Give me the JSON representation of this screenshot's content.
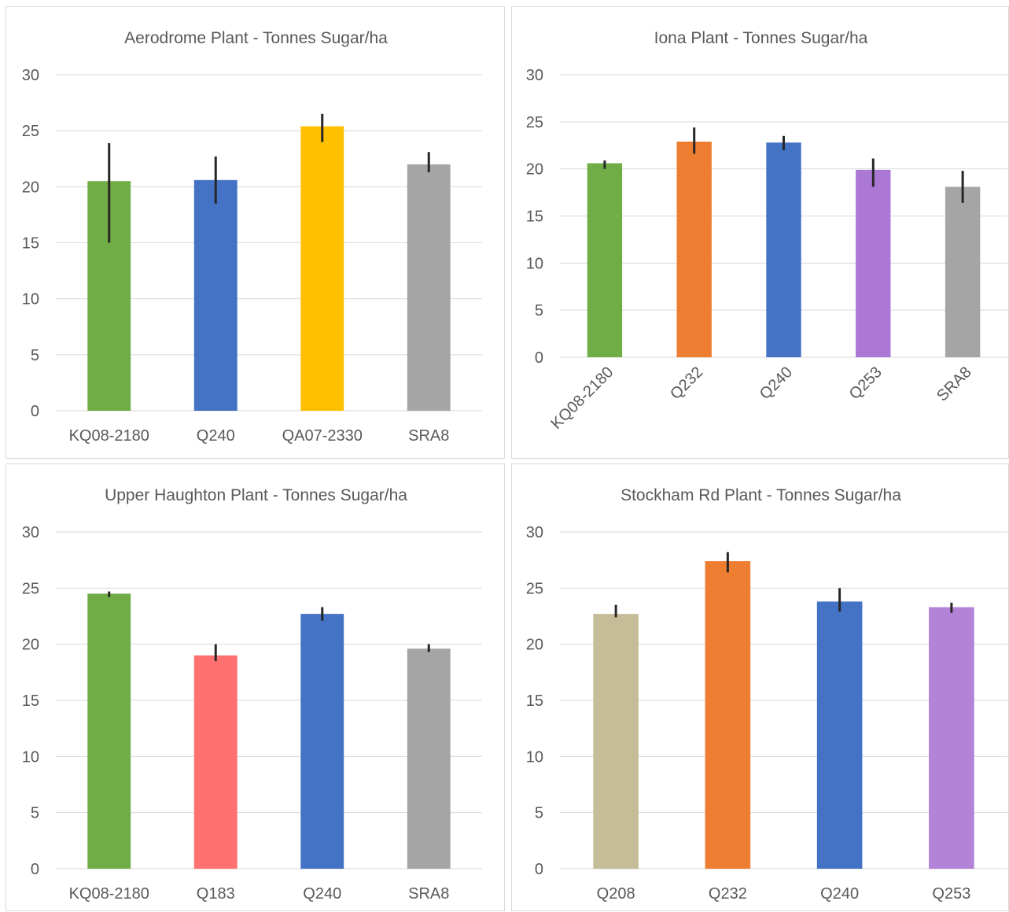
{
  "chart_data": [
    {
      "type": "bar",
      "title": "Aerodrome Plant - Tonnes Sugar/ha",
      "categories": [
        "KQ08-2180",
        "Q240",
        "QA07-2330",
        "SRA8"
      ],
      "values": [
        20.5,
        20.6,
        25.4,
        22.0
      ],
      "error_low": [
        15.0,
        18.5,
        24.0,
        21.3
      ],
      "error_high": [
        23.9,
        22.7,
        26.5,
        23.1
      ],
      "colors": [
        "#70AD47",
        "#4472C4",
        "#FFC000",
        "#A5A5A5"
      ],
      "ylim": [
        0,
        30
      ],
      "yticks": [
        0,
        5,
        10,
        15,
        20,
        25,
        30
      ],
      "grid": true,
      "legend": "none",
      "xlabel": "",
      "ylabel": ""
    },
    {
      "type": "bar",
      "title": "Iona Plant - Tonnes Sugar/ha",
      "categories": [
        "KQ08-2180",
        "Q232",
        "Q240",
        "Q253",
        "SRA8"
      ],
      "values": [
        20.6,
        22.9,
        22.8,
        19.9,
        18.1
      ],
      "error_low": [
        20.0,
        21.6,
        22.0,
        18.1,
        16.4
      ],
      "error_high": [
        20.9,
        24.4,
        23.5,
        21.1,
        19.8
      ],
      "colors": [
        "#70AD47",
        "#ED7D31",
        "#4472C4",
        "#AC78D6",
        "#A5A5A5"
      ],
      "ylim": [
        0,
        30
      ],
      "yticks": [
        0,
        5,
        10,
        15,
        20,
        25,
        30
      ],
      "grid": true,
      "legend": "none",
      "xlabel": "",
      "ylabel": ""
    },
    {
      "type": "bar",
      "title": "Upper Haughton Plant - Tonnes Sugar/ha",
      "categories": [
        "KQ08-2180",
        "Q183",
        "Q240",
        "SRA8"
      ],
      "values": [
        24.5,
        19.0,
        22.7,
        19.6
      ],
      "error_low": [
        24.2,
        18.5,
        22.1,
        19.3
      ],
      "error_high": [
        24.7,
        20.0,
        23.3,
        20.0
      ],
      "colors": [
        "#70AD47",
        "#FF7171",
        "#4472C4",
        "#A5A5A5"
      ],
      "ylim": [
        0,
        30
      ],
      "yticks": [
        0,
        5,
        10,
        15,
        20,
        25,
        30
      ],
      "grid": true,
      "legend": "none",
      "xlabel": "",
      "ylabel": ""
    },
    {
      "type": "bar",
      "title": "Stockham Rd Plant - Tonnes Sugar/ha",
      "categories": [
        "Q208",
        "Q232",
        "Q240",
        "Q253"
      ],
      "values": [
        22.7,
        27.4,
        23.8,
        23.3
      ],
      "error_low": [
        22.4,
        26.4,
        22.9,
        22.8
      ],
      "error_high": [
        23.5,
        28.2,
        25.0,
        23.7
      ],
      "colors": [
        "#C5BD97",
        "#ED7D31",
        "#4472C4",
        "#B383D8"
      ],
      "ylim": [
        0,
        30
      ],
      "yticks": [
        0,
        5,
        10,
        15,
        20,
        25,
        30
      ],
      "grid": true,
      "legend": "none",
      "xlabel": "",
      "ylabel": ""
    }
  ]
}
